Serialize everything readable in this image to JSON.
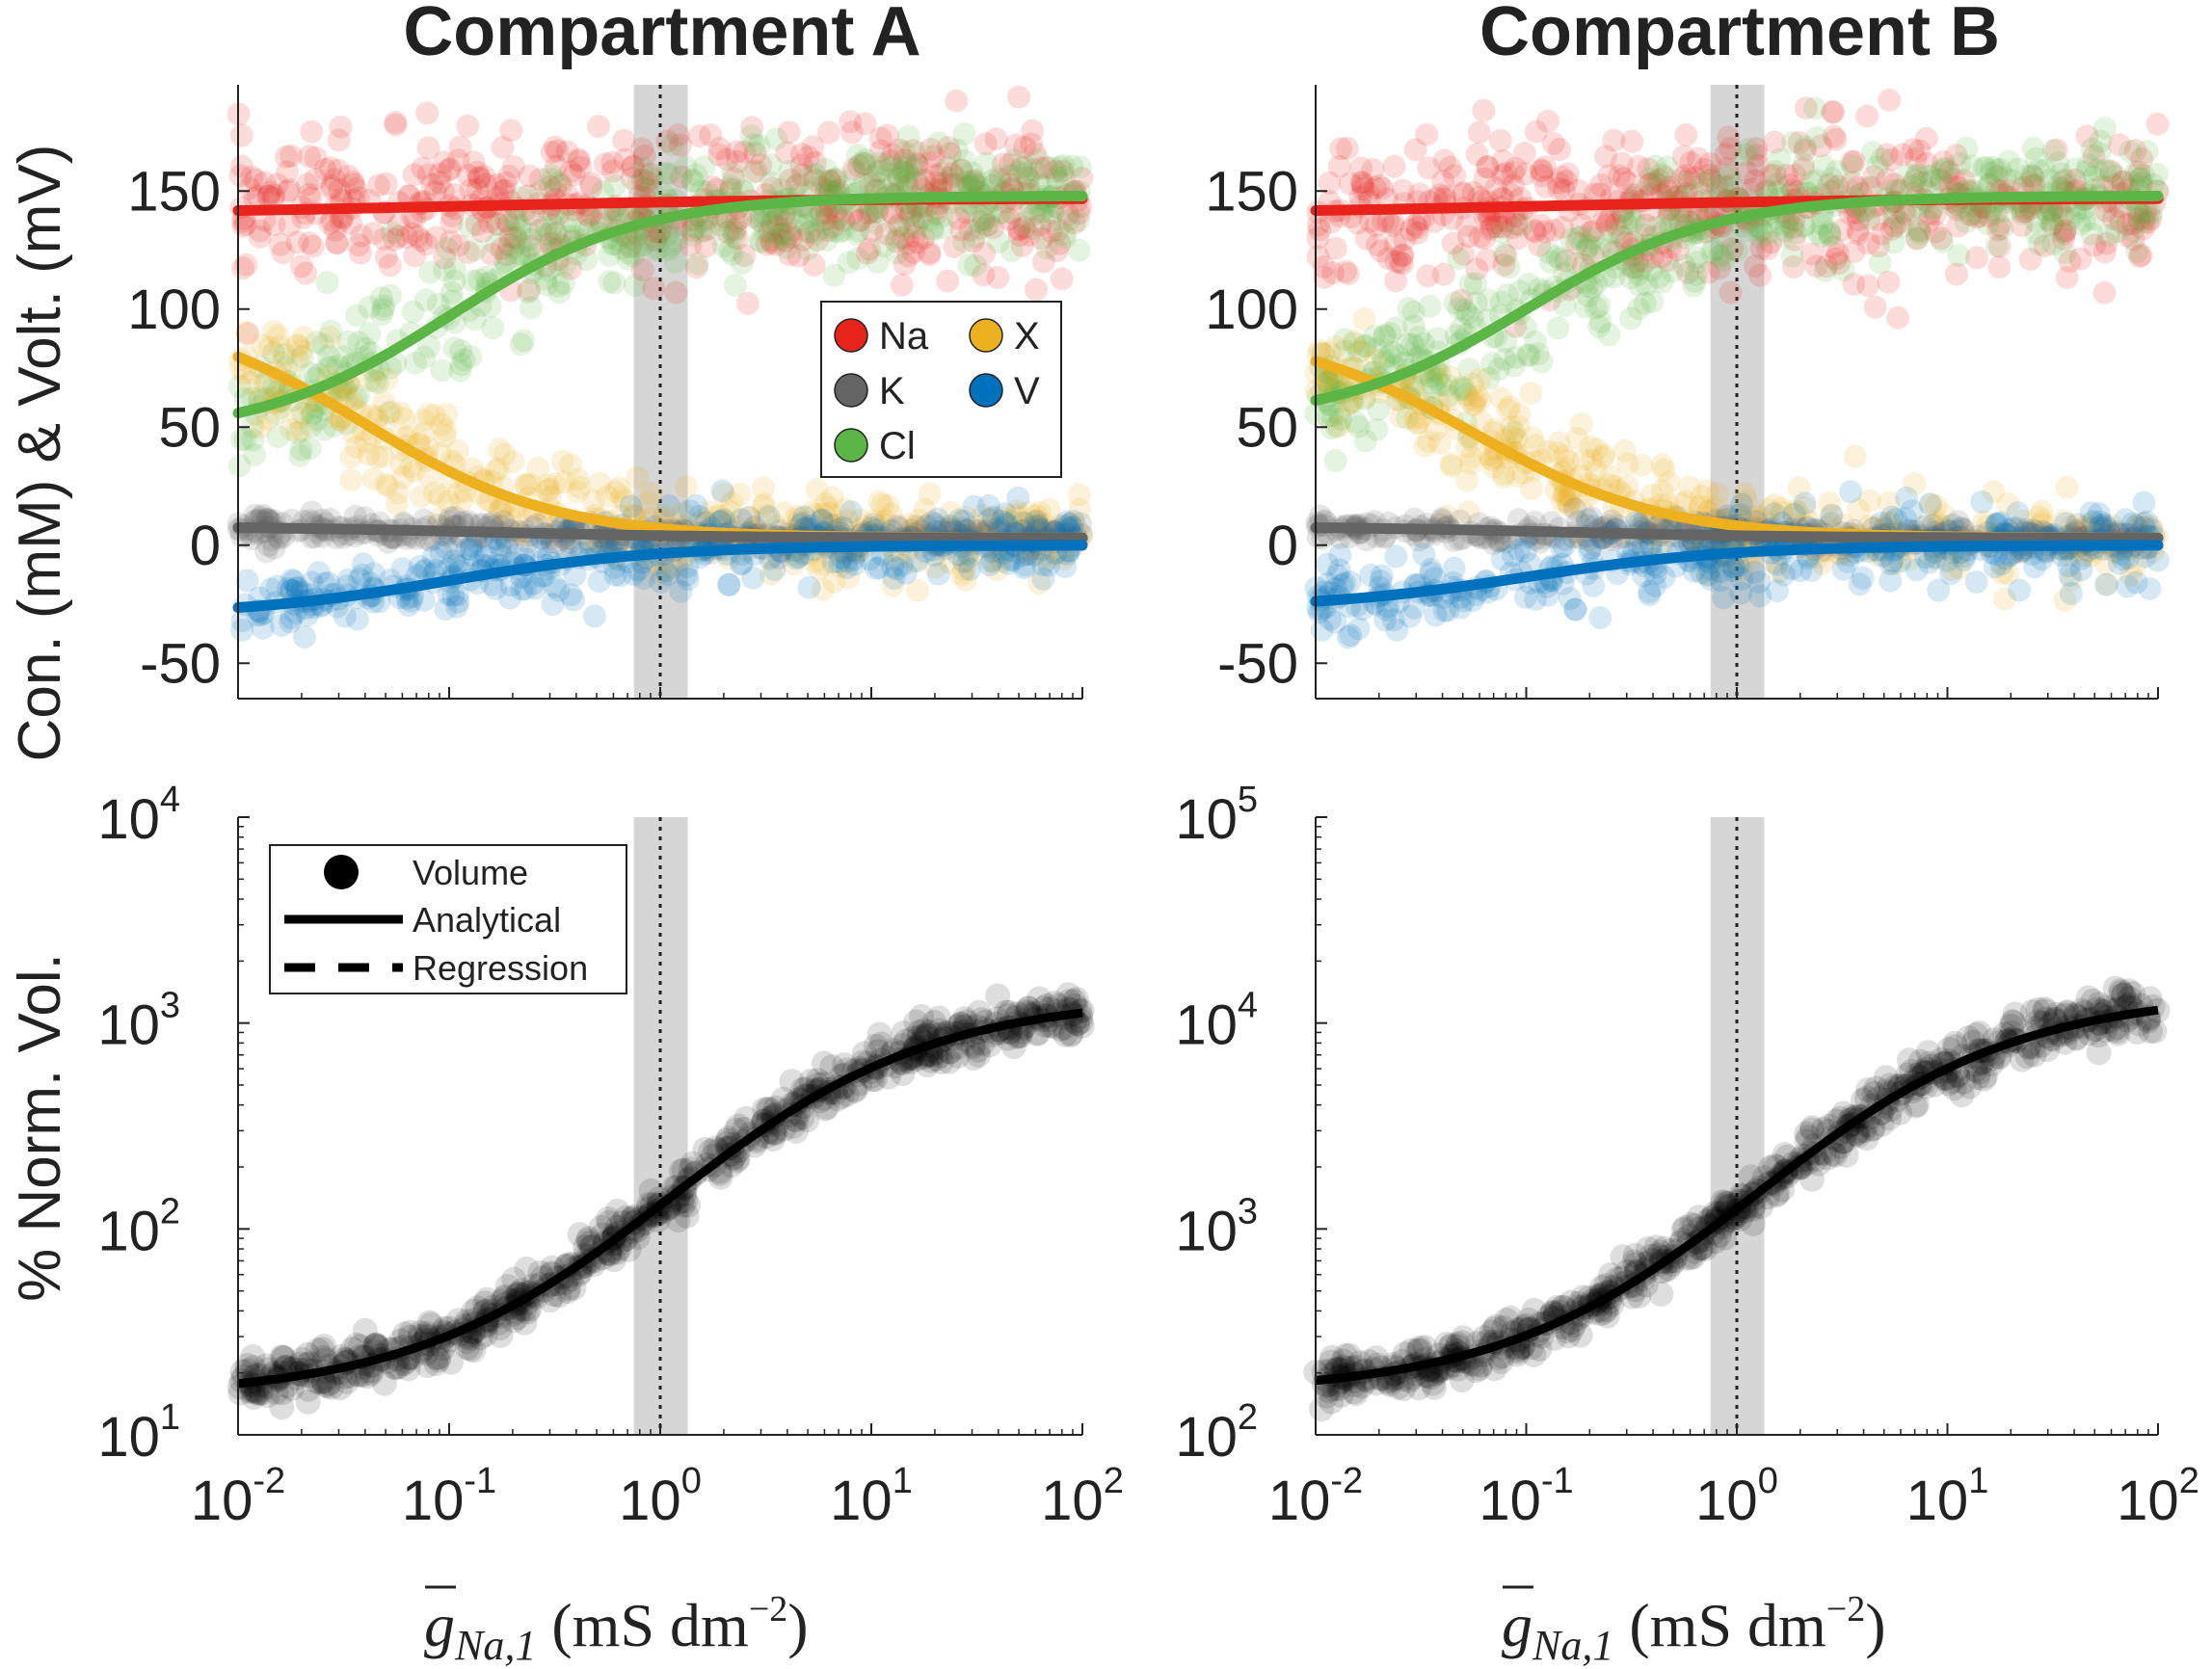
{
  "chart_data": [
    {
      "id": "A-top",
      "type": "scatter",
      "title": "Compartment A",
      "ylabel": "Con. (mM) & Volt. (mV)",
      "xscale": "log",
      "xlim": [
        0.01,
        100
      ],
      "ylim": [
        -65,
        195
      ],
      "yticks": [
        "150",
        "100",
        "50",
        "0",
        "-50"
      ],
      "reference_x": 1.0,
      "reference_band": [
        0.75,
        1.35
      ],
      "series": [
        {
          "name": "Na",
          "color": "#e8231c",
          "start": 140,
          "end": 147,
          "mid": -1.0,
          "width": 0.9,
          "noise": 15
        },
        {
          "name": "X",
          "color": "#edb120",
          "start": 100,
          "end": 3,
          "mid": -1.4,
          "width": 0.45,
          "noise": 14
        },
        {
          "name": "K",
          "color": "#646464",
          "start": 8,
          "end": 3,
          "mid": -0.8,
          "width": 0.6,
          "noise": 3
        },
        {
          "name": "V",
          "color": "#0072bd",
          "start": -30,
          "end": 0,
          "mid": -1.0,
          "width": 0.5,
          "noise": 8
        },
        {
          "name": "Cl",
          "color": "#5cb645",
          "start": 46,
          "end": 148,
          "mid": -1.0,
          "width": 0.45,
          "noise": 18
        }
      ],
      "legend": {
        "position": "upper-right",
        "entries": [
          "Na",
          "X",
          "K",
          "V",
          "Cl"
        ]
      }
    },
    {
      "id": "B-top",
      "type": "scatter",
      "title": "Compartment B",
      "ylabel": "",
      "xscale": "log",
      "xlim": [
        0.01,
        100
      ],
      "ylim": [
        -65,
        195
      ],
      "yticks": [
        "150",
        "100",
        "50",
        "0",
        "-50"
      ],
      "reference_x": 1.0,
      "reference_band": [
        0.75,
        1.35
      ],
      "series": [
        {
          "name": "Na",
          "color": "#e8231c",
          "start": 140,
          "end": 147,
          "mid": -1.0,
          "width": 0.9,
          "noise": 15
        },
        {
          "name": "X",
          "color": "#edb120",
          "start": 92,
          "end": 3,
          "mid": -1.25,
          "width": 0.45,
          "noise": 14
        },
        {
          "name": "K",
          "color": "#646464",
          "start": 8,
          "end": 3,
          "mid": -0.8,
          "width": 0.6,
          "noise": 3
        },
        {
          "name": "V",
          "color": "#0072bd",
          "start": -27,
          "end": 0,
          "mid": -1.0,
          "width": 0.5,
          "noise": 8
        },
        {
          "name": "Cl",
          "color": "#5cb645",
          "start": 52,
          "end": 148,
          "mid": -1.0,
          "width": 0.45,
          "noise": 18
        }
      ]
    },
    {
      "id": "A-bottom",
      "type": "scatter",
      "ylabel": "% Norm. Vol.",
      "xlabel_main": "g",
      "xlabel_sub": "Na,1",
      "xlabel_units": " (mS dm",
      "xlabel_exp": "−2",
      "xlabel_close": ")",
      "xscale": "log",
      "yscale": "log",
      "xlim": [
        0.01,
        100
      ],
      "ylim_log10": [
        1,
        4
      ],
      "yticks": [
        {
          "base": "10",
          "exp": "4"
        },
        {
          "base": "10",
          "exp": "3"
        },
        {
          "base": "10",
          "exp": "2"
        },
        {
          "base": "10",
          "exp": "1"
        }
      ],
      "xticks": [
        {
          "base": "10",
          "exp": "-2"
        },
        {
          "base": "10",
          "exp": "-1"
        },
        {
          "base": "10",
          "exp": "0"
        },
        {
          "base": "10",
          "exp": "1"
        },
        {
          "base": "10",
          "exp": "2"
        }
      ],
      "reference_x": 1.0,
      "volume_curve": {
        "log_start": 1.18,
        "log_end": 3.13,
        "mid": 0.05,
        "width": 0.62,
        "noise": 0.055
      },
      "legend": {
        "position": "upper-left",
        "entries": [
          "Volume",
          "Analytical",
          "Regression"
        ]
      }
    },
    {
      "id": "B-bottom",
      "type": "scatter",
      "ylabel": "",
      "xlabel_main": "g",
      "xlabel_sub": "Na,1",
      "xlabel_units": " (mS dm",
      "xlabel_exp": "−2",
      "xlabel_close": ")",
      "xscale": "log",
      "yscale": "log",
      "xlim": [
        0.01,
        100
      ],
      "ylim_log10": [
        2,
        5
      ],
      "yticks": [
        {
          "base": "10",
          "exp": "5"
        },
        {
          "base": "10",
          "exp": "4"
        },
        {
          "base": "10",
          "exp": "3"
        },
        {
          "base": "10",
          "exp": "2"
        }
      ],
      "xticks": [
        {
          "base": "10",
          "exp": "-2"
        },
        {
          "base": "10",
          "exp": "-1"
        },
        {
          "base": "10",
          "exp": "0"
        },
        {
          "base": "10",
          "exp": "1"
        },
        {
          "base": "10",
          "exp": "2"
        }
      ],
      "reference_x": 1.0,
      "volume_curve": {
        "log_start": 2.2,
        "log_end": 4.15,
        "mid": 0.1,
        "width": 0.62,
        "noise": 0.055
      }
    }
  ]
}
